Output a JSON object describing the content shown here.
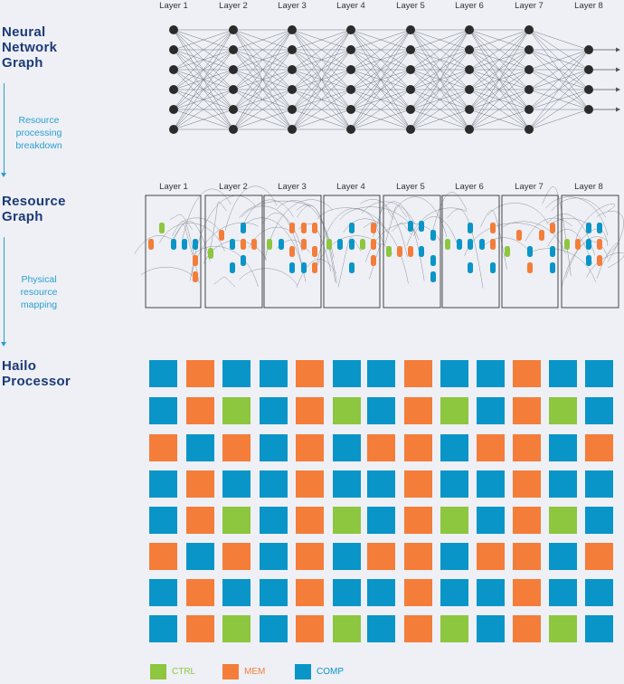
{
  "titles": {
    "nn": [
      "Neural",
      "Network",
      "Graph"
    ],
    "resource": [
      "Resource",
      "Graph"
    ],
    "processor": [
      "Hailo",
      "Processor"
    ]
  },
  "steps": {
    "step1": [
      "Resource",
      "processing",
      "breakdown"
    ],
    "step2": [
      "Physical",
      "resource",
      "mapping"
    ]
  },
  "layers": [
    "Layer 1",
    "Layer 2",
    "Layer 3",
    "Layer 4",
    "Layer 5",
    "Layer 6",
    "Layer 7",
    "Layer 8"
  ],
  "colors": {
    "ctrl": "#8dc63f",
    "mem": "#f47d3a",
    "comp": "#0a95c8",
    "node": "#2b2b2b",
    "title": "#1d3a78",
    "accent": "#2aa0d0"
  },
  "legend": [
    {
      "key": "ctrl",
      "label": "CTRL"
    },
    {
      "key": "mem",
      "label": "MEM"
    },
    {
      "key": "comp",
      "label": "COMP"
    }
  ],
  "grid": [
    "CMCCMCCMCCMCC",
    "CMGCMGCMGCMGC",
    "MCMCMCMMCMMCM",
    "CMCCMCCMCCMCC",
    "CMGCMGCMGCMGC",
    "MCMCMCMMCMMCM",
    "CMCCMCCMCCMCC",
    "CMGCMGCMGCMGC"
  ]
}
